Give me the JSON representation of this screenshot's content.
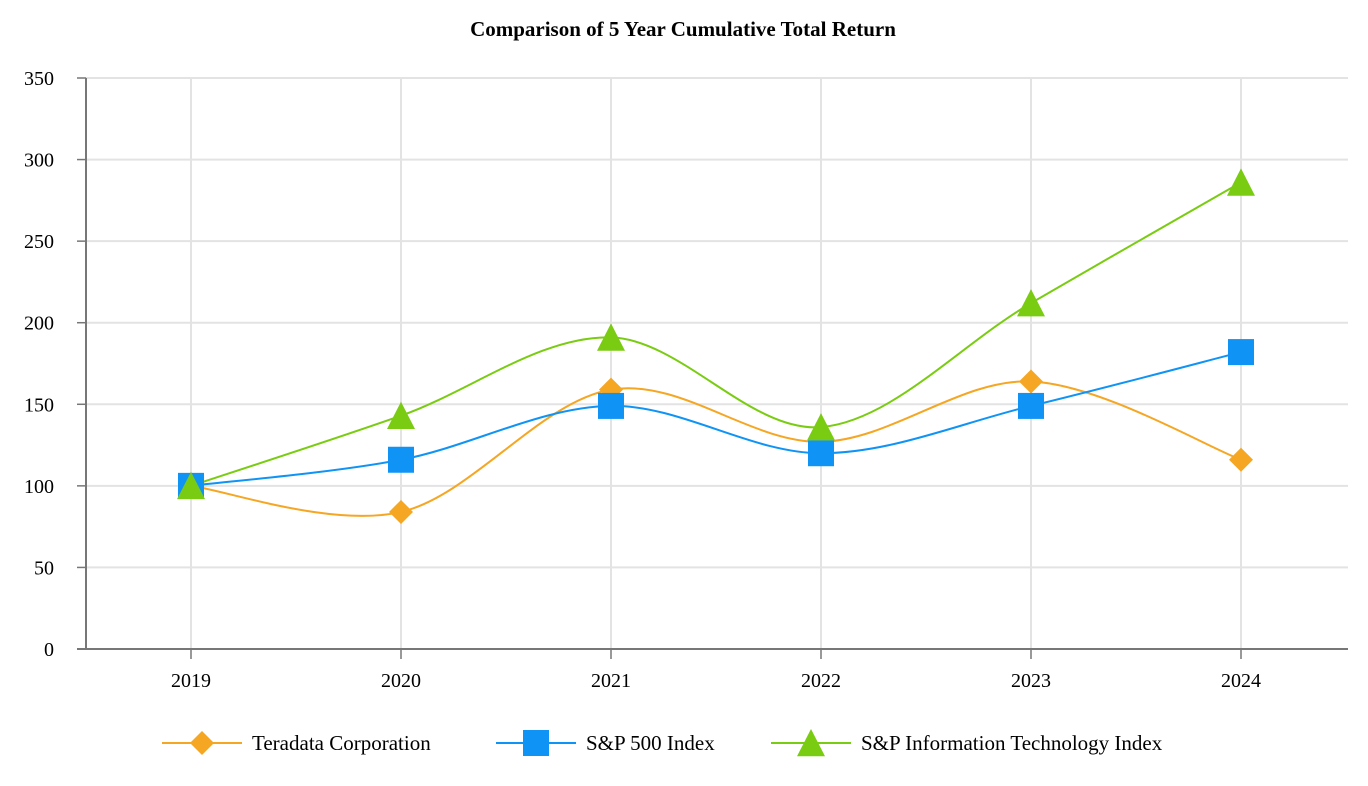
{
  "chart_data": {
    "type": "line",
    "title": "Comparison of 5 Year Cumulative Total Return",
    "xlabel": "",
    "ylabel": "",
    "categories": [
      "2019",
      "2020",
      "2021",
      "2022",
      "2023",
      "2024"
    ],
    "ylim": [
      0,
      350
    ],
    "yticks": [
      0,
      50,
      100,
      150,
      200,
      250,
      300,
      350
    ],
    "grid": true,
    "legend_position": "bottom",
    "series": [
      {
        "name": "Teradata Corporation",
        "values": [
          100,
          84,
          159,
          127,
          164,
          116
        ],
        "color": "#F5A623",
        "marker": "diamond"
      },
      {
        "name": "S&P 500 Index",
        "values": [
          100,
          116,
          149,
          120,
          149,
          182
        ],
        "color": "#0F94F5",
        "marker": "square"
      },
      {
        "name": "S&P Information Technology Index",
        "values": [
          100,
          143,
          191,
          136,
          212,
          286
        ],
        "color": "#7ACC12",
        "marker": "triangle"
      }
    ]
  }
}
